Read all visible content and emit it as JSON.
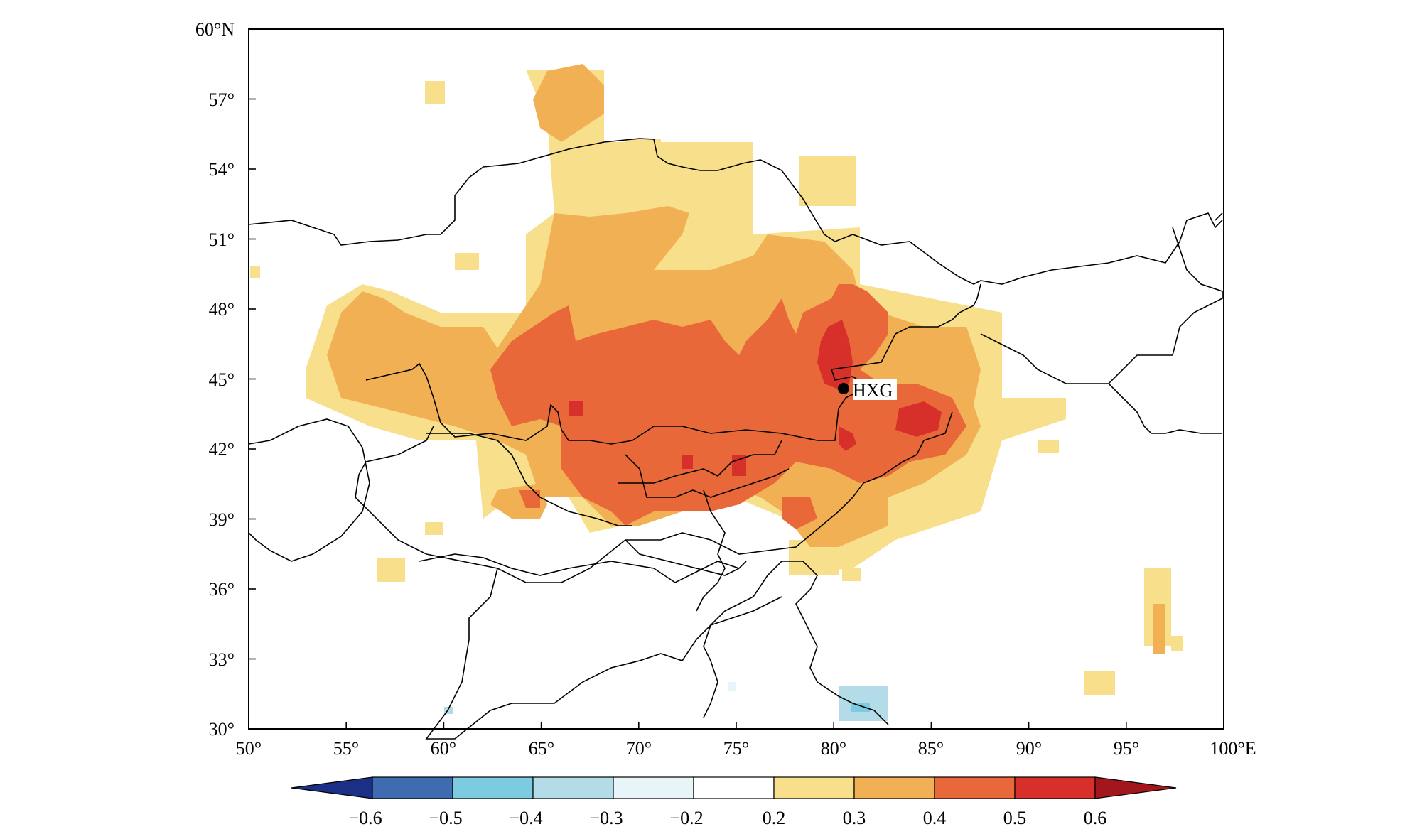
{
  "map": {
    "lat_labels": [
      "60°N",
      "57°",
      "54°",
      "51°",
      "48°",
      "45°",
      "42°",
      "39°",
      "36°",
      "33°",
      "30°"
    ],
    "lon_labels": [
      "50°",
      "55°",
      "60°",
      "65°",
      "70°",
      "75°",
      "80°",
      "85°",
      "90°",
      "95°",
      "100°E"
    ],
    "extent": {
      "lon": [
        50,
        100
      ],
      "lat": [
        30,
        60
      ]
    },
    "station": {
      "label": "HXG",
      "lon": 80.7,
      "lat": 44.6
    },
    "field_description": "positive anomaly region over Central Asia and Xinjiang, max 0.5-0.6 near HXG and Tarim/Junggar"
  },
  "colorbar": {
    "tick_labels": [
      "−0.6",
      "−0.5",
      "−0.4",
      "−0.3",
      "−0.2",
      "0.2",
      "0.3",
      "0.4",
      "0.5",
      "0.6"
    ],
    "colors": [
      "#1c2f87",
      "#3f6bb0",
      "#7dcbe0",
      "#b3dbe8",
      "#e8f5f8",
      "#ffffff",
      "#f8df8c",
      "#f2b055",
      "#e8683a",
      "#d7302b",
      "#a3161b"
    ]
  },
  "colors": {
    "level_03": "#f8df8c",
    "level_04": "#f2b055",
    "level_05": "#e8683a",
    "level_06": "#d7302b",
    "negative_light": "#b3dbe8",
    "negative_mid": "#7dcbe0",
    "border": "#000000"
  }
}
